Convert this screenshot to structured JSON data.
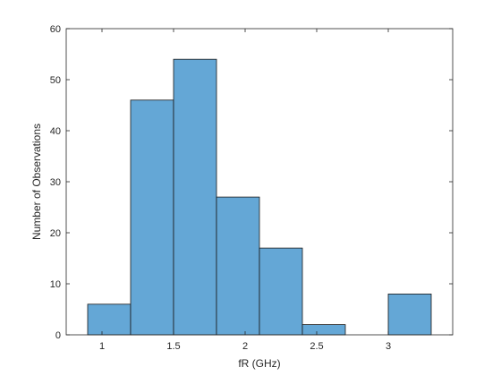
{
  "chart_data": {
    "type": "bar",
    "title": "",
    "xlabel": "fR (GHz)",
    "ylabel": "Number of Observations",
    "bin_edges": [
      0.9,
      1.2,
      1.5,
      1.8,
      2.1,
      2.4,
      2.7,
      3.0,
      3.3
    ],
    "values": [
      6,
      46,
      54,
      27,
      17,
      2,
      0,
      8
    ],
    "xlim": [
      0.75,
      3.45
    ],
    "ylim": [
      0,
      60
    ],
    "xticks": [
      1,
      1.5,
      2,
      2.5,
      3
    ],
    "xtick_labels": [
      "1",
      "1.5",
      "2",
      "2.5",
      "3"
    ],
    "yticks": [
      0,
      10,
      20,
      30,
      40,
      50,
      60
    ],
    "ytick_labels": [
      "0",
      "10",
      "20",
      "30",
      "40",
      "50",
      "60"
    ],
    "bar_color": "#64a7d6",
    "edge_color": "#1a1a1a",
    "grid": false,
    "legend": "none"
  }
}
